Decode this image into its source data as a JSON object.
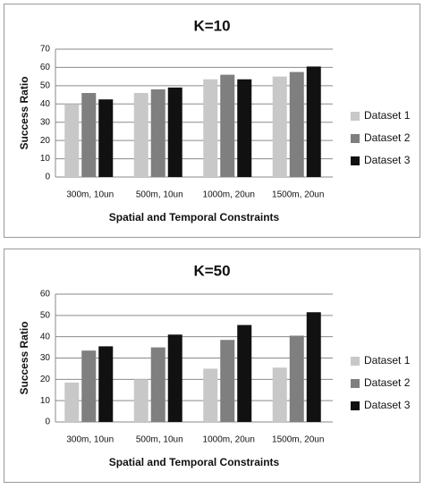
{
  "chart_data": [
    {
      "type": "bar",
      "title": "K=10",
      "x_label": "Spatial and Temporal Constraints",
      "y_label": "Success Ratio",
      "categories": [
        "300m, 10un",
        "500m, 10un",
        "1000m, 20un",
        "1500m, 20un"
      ],
      "series": [
        {
          "name": "Dataset 1",
          "color": "#c8c8c8",
          "values": [
            40,
            46,
            53.5,
            55
          ]
        },
        {
          "name": "Dataset 2",
          "color": "#7f7f7f",
          "values": [
            46,
            48,
            56,
            57.5
          ]
        },
        {
          "name": "Dataset 3",
          "color": "#111111",
          "values": [
            42.5,
            49,
            53.5,
            60.5
          ]
        }
      ],
      "ylim": [
        0,
        70
      ],
      "yticks": [
        0,
        10,
        20,
        30,
        40,
        50,
        60,
        70
      ],
      "grid": true,
      "legend": "right"
    },
    {
      "type": "bar",
      "title": "K=50",
      "x_label": "Spatial and Temporal Constraints",
      "y_label": "Success Ratio",
      "categories": [
        "300m, 10un",
        "500m, 10un",
        "1000m, 20un",
        "1500m, 20un"
      ],
      "series": [
        {
          "name": "Dataset 1",
          "color": "#c8c8c8",
          "values": [
            18.5,
            20,
            25,
            25.5
          ]
        },
        {
          "name": "Dataset 2",
          "color": "#7f7f7f",
          "values": [
            33.5,
            35,
            38.5,
            40.5
          ]
        },
        {
          "name": "Dataset 3",
          "color": "#111111",
          "values": [
            35.5,
            41,
            45.5,
            51.5
          ]
        }
      ],
      "ylim": [
        0,
        60
      ],
      "yticks": [
        0,
        10,
        20,
        30,
        40,
        50,
        60
      ],
      "grid": true,
      "legend": "right"
    }
  ]
}
